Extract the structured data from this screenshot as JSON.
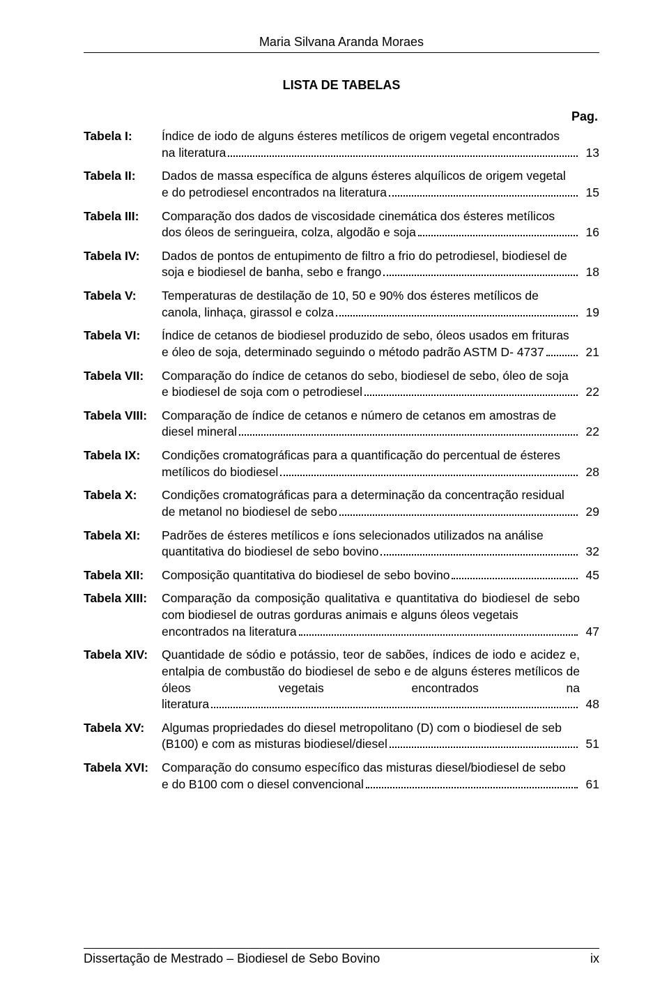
{
  "running_head": "Maria Silvana Aranda Moraes",
  "title": "LISTA DE TABELAS",
  "page_label": "Pag.",
  "entries": [
    {
      "label": "Tabela I:",
      "pre": "Índice de iodo de alguns ésteres metílicos de origem vegetal encontrados",
      "tail": "na literatura",
      "page": "13"
    },
    {
      "label": "Tabela II:",
      "pre": "Dados de massa específica de alguns ésteres alquílicos de origem vegetal",
      "tail": "e do petrodiesel encontrados na literatura",
      "page": "15"
    },
    {
      "label": "Tabela III:",
      "pre": "Comparação dos dados de viscosidade cinemática dos ésteres metílicos",
      "tail": "dos óleos de seringueira, colza, algodão e soja",
      "page": "16"
    },
    {
      "label": "Tabela IV:",
      "pre": "Dados de pontos de entupimento de filtro a frio do petrodiesel, biodiesel de",
      "tail": "soja e biodiesel de banha, sebo e frango",
      "page": "18"
    },
    {
      "label": "Tabela V:",
      "pre": "Temperaturas de destilação de 10, 50 e 90% dos ésteres metílicos de",
      "tail": "canola, linhaça, girassol e colza",
      "page": "19"
    },
    {
      "label": "Tabela VI:",
      "pre": "Índice de cetanos de biodiesel produzido de sebo, óleos usados em frituras",
      "tail": "e óleo de soja, determinado seguindo o método padrão ASTM D- 4737",
      "page": "21"
    },
    {
      "label": "Tabela VII:",
      "pre": "Comparação do índice de cetanos do sebo, biodiesel de sebo, óleo de soja",
      "tail": "e biodiesel de soja com o petrodiesel",
      "page": "22"
    },
    {
      "label": "Tabela VIII:",
      "pre": "Comparação de índice de cetanos e número de cetanos em amostras de",
      "tail": "diesel mineral ",
      "page": "22"
    },
    {
      "label": "Tabela IX:",
      "pre": "Condições cromatográficas para a quantificação do percentual de ésteres",
      "tail": "metílicos do biodiesel",
      "page": "28"
    },
    {
      "label": "Tabela X:",
      "pre": "Condições cromatográficas para a determinação da concentração residual",
      "tail": "de metanol no biodiesel de sebo",
      "page": "29"
    },
    {
      "label": "Tabela XI:",
      "pre": "Padrões de ésteres metílicos e íons selecionados utilizados na análise",
      "tail": "quantitativa do biodiesel de sebo bovino",
      "page": "32"
    },
    {
      "label": "Tabela XII:",
      "pre": "",
      "tail": "Composição quantitativa do biodiesel de sebo bovino",
      "page": "45",
      "single": true
    },
    {
      "label": "Tabela XIII:",
      "pre": "Comparação da composição qualitativa e quantitativa do biodiesel de sebo com biodiesel de outras gorduras animais e alguns óleos vegetais",
      "tail": "encontrados na literatura",
      "page": "47"
    },
    {
      "label": "Tabela XIV:",
      "pre": "Quantidade de sódio e potássio, teor de sabões, índices de iodo e acidez e, entalpia de combustão do biodiesel de sebo e de alguns ésteres metílicos de óleos vegetais encontrados na",
      "tail": "literatura",
      "page": "48",
      "justify_pre": true
    },
    {
      "label": "Tabela XV:",
      "pre": "Algumas propriedades do diesel metropolitano (D) com o biodiesel de seb",
      "tail": "(B100) e com as misturas biodiesel/diesel ",
      "page": "51"
    },
    {
      "label": "Tabela XVI:",
      "pre": "Comparação do consumo específico das misturas diesel/biodiesel de sebo",
      "tail": "e do B100 com o diesel convencional",
      "page": "61"
    }
  ],
  "footer_left": "Dissertação de Mestrado – Biodiesel de Sebo Bovino",
  "footer_right": "ix"
}
